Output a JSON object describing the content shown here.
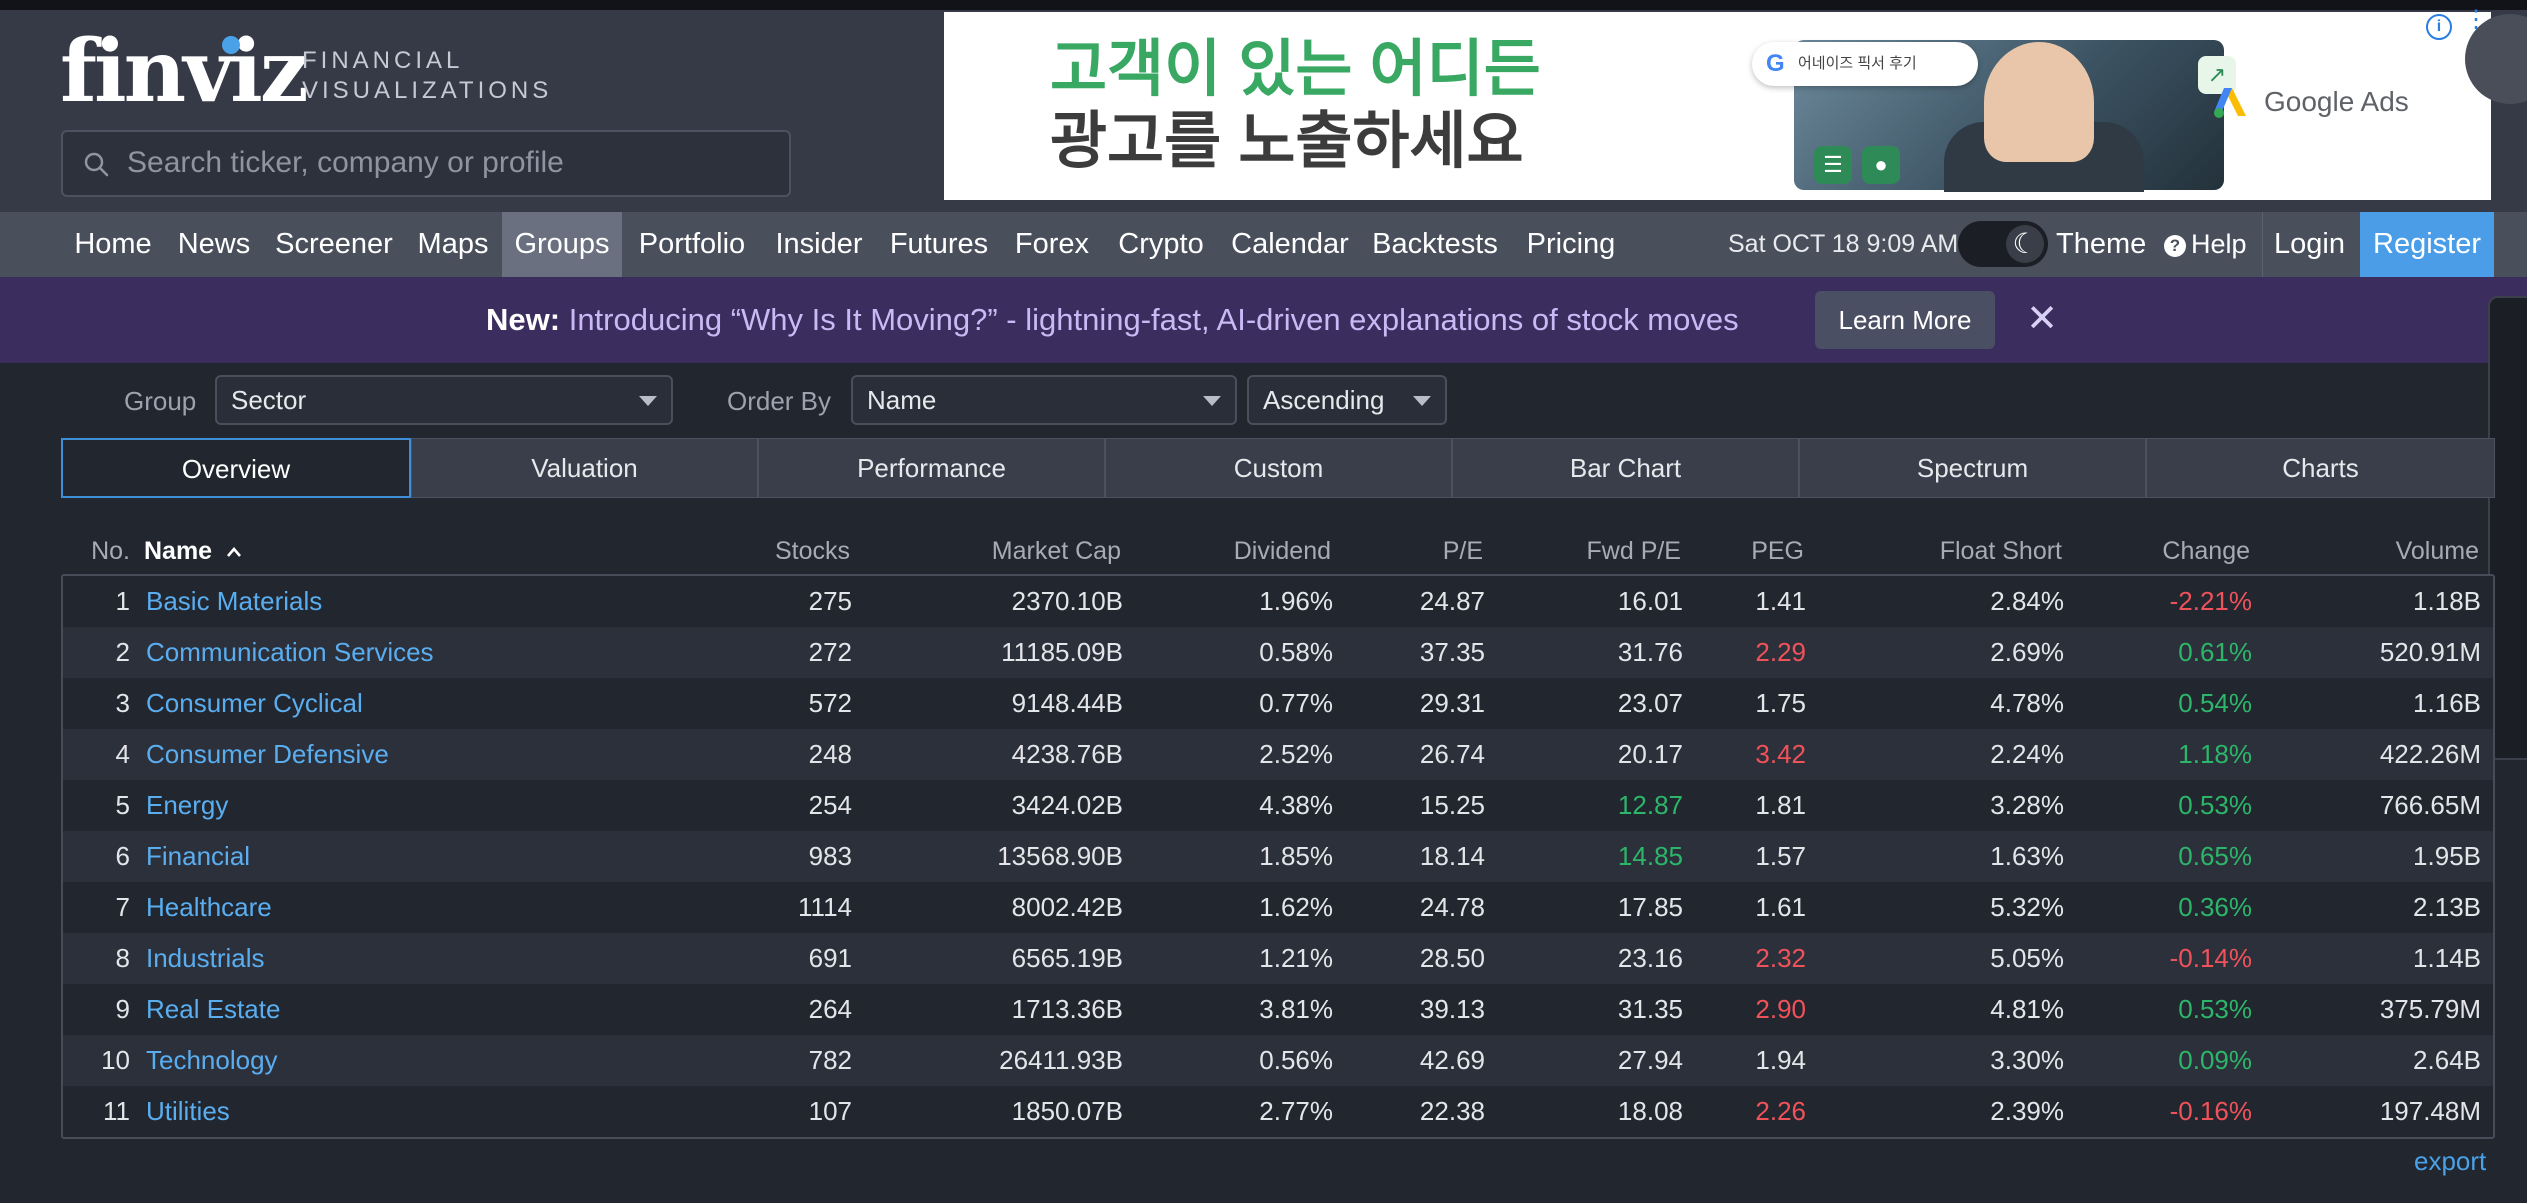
{
  "logo": {
    "brand": "finviz",
    "tagline_1": "FINANCIAL",
    "tagline_2": "VISUALIZATIONS"
  },
  "search": {
    "placeholder": "Search ticker, company or profile"
  },
  "ad": {
    "line1": "고객이 있는 어디든",
    "line2": "광고를 노출하세요",
    "chip": "어네이즈 픽서 후기",
    "brand": "Google Ads"
  },
  "nav": {
    "items": [
      "Home",
      "News",
      "Screener",
      "Maps",
      "Groups",
      "Portfolio",
      "Insider",
      "Futures",
      "Forex",
      "Crypto",
      "Calendar",
      "Backtests",
      "Pricing"
    ],
    "active": "Groups",
    "date": "Sat OCT 18 9:09 AM",
    "theme": "Theme",
    "help": "Help",
    "login": "Login",
    "register": "Register"
  },
  "banner": {
    "new_label": "New:",
    "text": "Introducing “Why Is It Moving?” - lightning-fast, AI-driven explanations of stock moves",
    "button": "Learn More"
  },
  "controls": {
    "group_label": "Group",
    "group_value": "Sector",
    "order_label": "Order By",
    "order_value": "Name",
    "direction_value": "Ascending"
  },
  "tabs": [
    "Overview",
    "Valuation",
    "Performance",
    "Custom",
    "Bar Chart",
    "Spectrum",
    "Charts"
  ],
  "active_tab": "Overview",
  "table": {
    "headers": {
      "no": "No.",
      "name": "Name",
      "stocks": "Stocks",
      "market_cap": "Market Cap",
      "dividend": "Dividend",
      "pe": "P/E",
      "fwd_pe": "Fwd P/E",
      "peg": "PEG",
      "float_short": "Float Short",
      "change": "Change",
      "volume": "Volume"
    },
    "sort_indicator": "^",
    "rows": [
      {
        "no": "1",
        "name": "Basic Materials",
        "stocks": "275",
        "market_cap": "2370.10B",
        "dividend": "1.96%",
        "pe": "24.87",
        "fwd_pe": "16.01",
        "peg": "1.41",
        "float_short": "2.84%",
        "change": "-2.21%",
        "volume": "1.18B"
      },
      {
        "no": "2",
        "name": "Communication Services",
        "stocks": "272",
        "market_cap": "11185.09B",
        "dividend": "0.58%",
        "pe": "37.35",
        "fwd_pe": "31.76",
        "peg": "2.29",
        "float_short": "2.69%",
        "change": "0.61%",
        "volume": "520.91M"
      },
      {
        "no": "3",
        "name": "Consumer Cyclical",
        "stocks": "572",
        "market_cap": "9148.44B",
        "dividend": "0.77%",
        "pe": "29.31",
        "fwd_pe": "23.07",
        "peg": "1.75",
        "float_short": "4.78%",
        "change": "0.54%",
        "volume": "1.16B"
      },
      {
        "no": "4",
        "name": "Consumer Defensive",
        "stocks": "248",
        "market_cap": "4238.76B",
        "dividend": "2.52%",
        "pe": "26.74",
        "fwd_pe": "20.17",
        "peg": "3.42",
        "float_short": "2.24%",
        "change": "1.18%",
        "volume": "422.26M"
      },
      {
        "no": "5",
        "name": "Energy",
        "stocks": "254",
        "market_cap": "3424.02B",
        "dividend": "4.38%",
        "pe": "15.25",
        "fwd_pe": "12.87",
        "peg": "1.81",
        "float_short": "3.28%",
        "change": "0.53%",
        "volume": "766.65M"
      },
      {
        "no": "6",
        "name": "Financial",
        "stocks": "983",
        "market_cap": "13568.90B",
        "dividend": "1.85%",
        "pe": "18.14",
        "fwd_pe": "14.85",
        "peg": "1.57",
        "float_short": "1.63%",
        "change": "0.65%",
        "volume": "1.95B"
      },
      {
        "no": "7",
        "name": "Healthcare",
        "stocks": "1114",
        "market_cap": "8002.42B",
        "dividend": "1.62%",
        "pe": "24.78",
        "fwd_pe": "17.85",
        "peg": "1.61",
        "float_short": "5.32%",
        "change": "0.36%",
        "volume": "2.13B"
      },
      {
        "no": "8",
        "name": "Industrials",
        "stocks": "691",
        "market_cap": "6565.19B",
        "dividend": "1.21%",
        "pe": "28.50",
        "fwd_pe": "23.16",
        "peg": "2.32",
        "float_short": "5.05%",
        "change": "-0.14%",
        "volume": "1.14B"
      },
      {
        "no": "9",
        "name": "Real Estate",
        "stocks": "264",
        "market_cap": "1713.36B",
        "dividend": "3.81%",
        "pe": "39.13",
        "fwd_pe": "31.35",
        "peg": "2.90",
        "float_short": "4.81%",
        "change": "0.53%",
        "volume": "375.79M"
      },
      {
        "no": "10",
        "name": "Technology",
        "stocks": "782",
        "market_cap": "26411.93B",
        "dividend": "0.56%",
        "pe": "42.69",
        "fwd_pe": "27.94",
        "peg": "1.94",
        "float_short": "3.30%",
        "change": "0.09%",
        "volume": "2.64B"
      },
      {
        "no": "11",
        "name": "Utilities",
        "stocks": "107",
        "market_cap": "1850.07B",
        "dividend": "2.77%",
        "pe": "22.38",
        "fwd_pe": "18.08",
        "peg": "2.26",
        "float_short": "2.39%",
        "change": "-0.16%",
        "volume": "197.48M"
      }
    ],
    "highlight_cells": {
      "fwd_pe_low": [
        "Energy",
        "Financial"
      ],
      "peg_high": [
        "Communication Services",
        "Consumer Defensive",
        "Industrials",
        "Real Estate",
        "Utilities"
      ]
    }
  },
  "export": "export",
  "colors": {
    "positive": "#2cb66a",
    "negative": "#f0525a",
    "link": "#5aaef0",
    "accent": "#4a9de6",
    "banner_bg": "#3b2d5e"
  }
}
